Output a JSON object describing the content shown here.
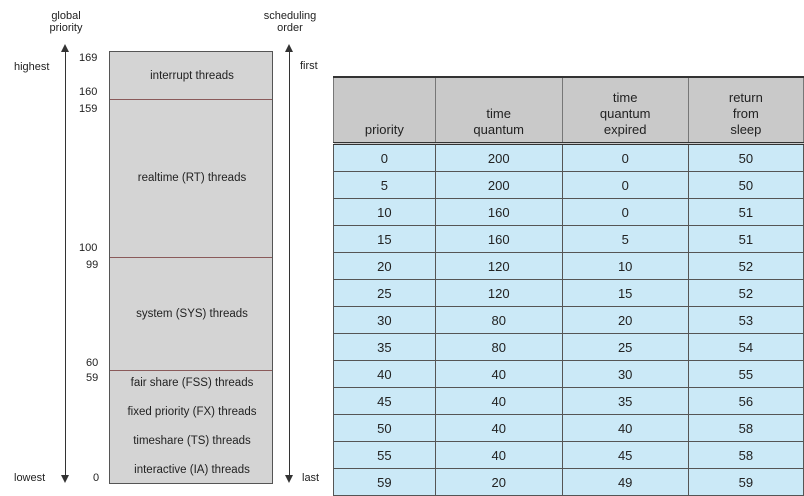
{
  "diagram": {
    "header_left": "global\npriority",
    "header_right": "scheduling\norder",
    "label_highest": "highest",
    "label_lowest": "lowest",
    "label_first": "first",
    "label_last": "last",
    "priority_numbers": {
      "n169": "169",
      "n160": "160",
      "n159": "159",
      "n100": "100",
      "n99": "99",
      "n60": "60",
      "n59": "59",
      "n0": "0"
    },
    "classes": {
      "interrupt": "interrupt threads",
      "realtime": "realtime (RT) threads",
      "system": "system (SYS) threads",
      "fss": "fair share (FSS) threads",
      "fx": "fixed priority (FX) threads",
      "ts": "timeshare (TS) threads",
      "ia": "interactive (IA) threads"
    }
  },
  "table": {
    "headers": {
      "priority": "priority",
      "quantum": "time\nquantum",
      "expired": "time\nquantum\nexpired",
      "sleep": "return\nfrom\nsleep"
    },
    "rows": [
      [
        "0",
        "200",
        "0",
        "50"
      ],
      [
        "5",
        "200",
        "0",
        "50"
      ],
      [
        "10",
        "160",
        "0",
        "51"
      ],
      [
        "15",
        "160",
        "5",
        "51"
      ],
      [
        "20",
        "120",
        "10",
        "52"
      ],
      [
        "25",
        "120",
        "15",
        "52"
      ],
      [
        "30",
        "80",
        "20",
        "53"
      ],
      [
        "35",
        "80",
        "25",
        "54"
      ],
      [
        "40",
        "40",
        "30",
        "55"
      ],
      [
        "45",
        "40",
        "35",
        "56"
      ],
      [
        "50",
        "40",
        "40",
        "58"
      ],
      [
        "55",
        "40",
        "45",
        "58"
      ],
      [
        "59",
        "20",
        "49",
        "59"
      ]
    ]
  }
}
